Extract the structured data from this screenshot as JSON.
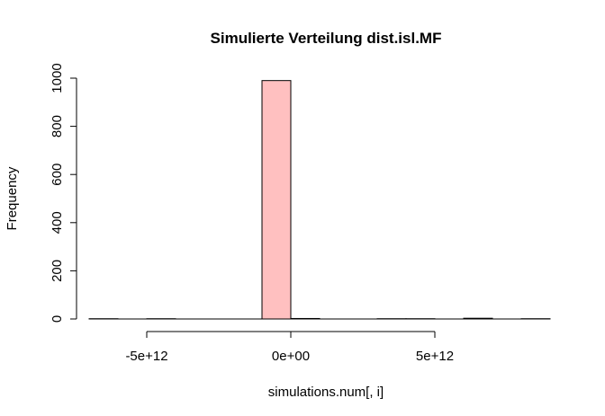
{
  "chart_data": {
    "type": "bar",
    "title": "Simulierte Verteilung dist.isl.MF",
    "xlabel": "simulations.num[, i]",
    "ylabel": "Frequency",
    "bar_color": "#FFC0C0",
    "x_ticks": [
      {
        "value": -5000000000000.0,
        "label": "-5e+12"
      },
      {
        "value": 0,
        "label": "0e+00"
      },
      {
        "value": 5000000000000.0,
        "label": "5e+12"
      }
    ],
    "x_axis_range": [
      -5000000000000.0,
      5000000000000.0
    ],
    "y_ticks": [
      {
        "value": 0,
        "label": "0"
      },
      {
        "value": 200,
        "label": "200"
      },
      {
        "value": 400,
        "label": "400"
      },
      {
        "value": 600,
        "label": "600"
      },
      {
        "value": 800,
        "label": "800"
      },
      {
        "value": 1000,
        "label": "1000"
      }
    ],
    "ylim": [
      0,
      1000
    ],
    "xlim": [
      -7000000000000.0,
      9000000000000.0
    ],
    "bins": [
      {
        "start": -7000000000000.0,
        "end": -6000000000000.0,
        "count": 1
      },
      {
        "start": -6000000000000.0,
        "end": -5000000000000.0,
        "count": 0
      },
      {
        "start": -5000000000000.0,
        "end": -4000000000000.0,
        "count": 1
      },
      {
        "start": -4000000000000.0,
        "end": -3000000000000.0,
        "count": 0
      },
      {
        "start": -3000000000000.0,
        "end": -2000000000000.0,
        "count": 0
      },
      {
        "start": -2000000000000.0,
        "end": -1000000000000.0,
        "count": 0
      },
      {
        "start": -1000000000000.0,
        "end": 0,
        "count": 990
      },
      {
        "start": 0,
        "end": 1000000000000.0,
        "count": 2
      },
      {
        "start": 1000000000000.0,
        "end": 2000000000000.0,
        "count": 0
      },
      {
        "start": 2000000000000.0,
        "end": 3000000000000.0,
        "count": 0
      },
      {
        "start": 3000000000000.0,
        "end": 4000000000000.0,
        "count": 1
      },
      {
        "start": 4000000000000.0,
        "end": 5000000000000.0,
        "count": 1
      },
      {
        "start": 5000000000000.0,
        "end": 6000000000000.0,
        "count": 0
      },
      {
        "start": 6000000000000.0,
        "end": 7000000000000.0,
        "count": 3
      },
      {
        "start": 7000000000000.0,
        "end": 8000000000000.0,
        "count": 0
      },
      {
        "start": 8000000000000.0,
        "end": 9000000000000.0,
        "count": 1
      }
    ],
    "grid": false,
    "legend": "none"
  }
}
